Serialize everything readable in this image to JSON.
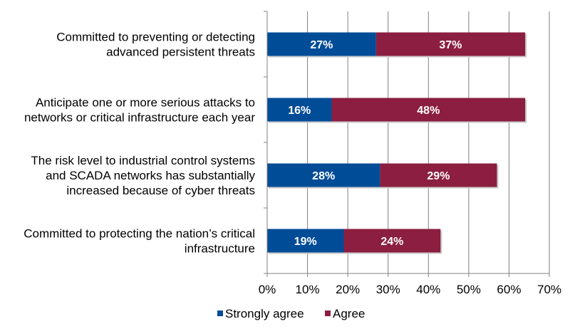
{
  "chart_data": {
    "type": "bar",
    "orientation": "horizontal",
    "stacked": true,
    "categories": [
      [
        "Committed to preventing or detecting",
        "advanced persistent threats"
      ],
      [
        "Anticipate one or more serious attacks to",
        "networks or critical infrastructure each year"
      ],
      [
        "The risk level to industrial control systems",
        "and SCADA networks has substantially",
        "increased because of cyber threats"
      ],
      [
        "Committed to protecting the nation’s critical",
        "infrastructure"
      ]
    ],
    "series": [
      {
        "name": "Strongly agree",
        "color": "#004c97",
        "values": [
          27,
          16,
          28,
          19
        ],
        "labels": [
          "27%",
          "16%",
          "28%",
          "19%"
        ]
      },
      {
        "name": "Agree",
        "color": "#8b1e41",
        "values": [
          37,
          48,
          29,
          24
        ],
        "labels": [
          "37%",
          "48%",
          "29%",
          "24%"
        ]
      }
    ],
    "xlim": [
      0,
      70
    ],
    "xticks": [
      0,
      10,
      20,
      30,
      40,
      50,
      60,
      70
    ],
    "xtick_labels": [
      "0%",
      "10%",
      "20%",
      "30%",
      "40%",
      "50%",
      "60%",
      "70%"
    ],
    "grid": true,
    "legend": "bottom",
    "title": "",
    "xlabel": "",
    "ylabel": ""
  }
}
